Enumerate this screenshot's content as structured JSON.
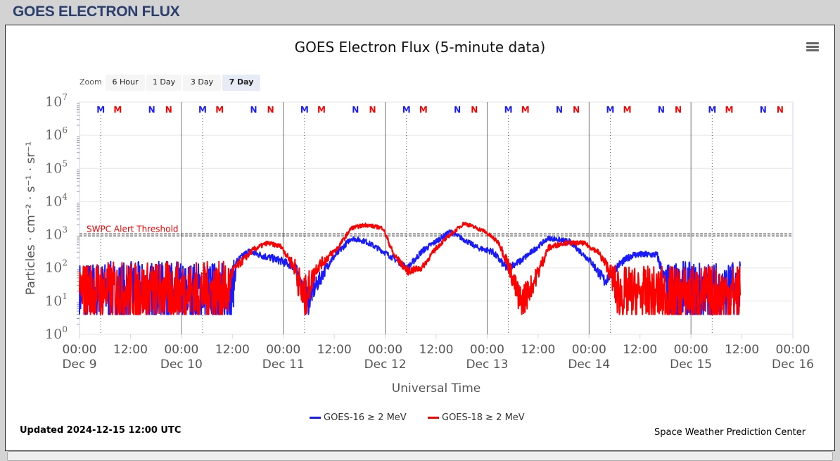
{
  "header": {
    "title": "GOES ELECTRON FLUX"
  },
  "zoom": {
    "label": "Zoom",
    "buttons": [
      "6 Hour",
      "1 Day",
      "3 Day",
      "7 Day"
    ],
    "selected": "7 Day"
  },
  "menu_icon": "hamburger-menu-icon",
  "footer": {
    "updated": "Updated 2024-12-15 12:00 UTC",
    "credit": "Space Weather Prediction Center"
  },
  "colors": {
    "goes16": "#1a1aff",
    "goes18": "#ff0000",
    "threshold": "#333333",
    "header": "#2a3f6d"
  },
  "chart_data": {
    "type": "line",
    "title": "GOES Electron Flux (5-minute data)",
    "xlabel": "Universal Time",
    "ylabel": "Particles · cm⁻² · s⁻¹ · sr⁻¹",
    "yscale": "log",
    "ylim_log10": [
      0,
      7
    ],
    "ytick_exponents": [
      "0",
      "1",
      "2",
      "3",
      "4",
      "5",
      "6",
      "7"
    ],
    "xrange_hours_from_dec9": [
      0,
      168
    ],
    "xtick_times": [
      "00:00",
      "12:00",
      "00:00",
      "12:00",
      "00:00",
      "12:00",
      "00:00",
      "12:00",
      "00:00",
      "12:00",
      "00:00",
      "12:00",
      "00:00",
      "12:00",
      "00:00"
    ],
    "xtick_dates": [
      "Dec 9",
      "",
      "Dec 10",
      "",
      "Dec 11",
      "",
      "Dec 12",
      "",
      "Dec 13",
      "",
      "Dec 14",
      "",
      "Dec 15",
      "",
      "Dec 16"
    ],
    "threshold": {
      "label": "SWPC Alert Threshold",
      "value": 1000
    },
    "markers_per_day": [
      {
        "text": "M",
        "color": "#1a1aff",
        "hour": 5
      },
      {
        "text": "M",
        "color": "#ff0000",
        "hour": 9
      },
      {
        "text": "N",
        "color": "#1a1aff",
        "hour": 17
      },
      {
        "text": "N",
        "color": "#ff0000",
        "hour": 21
      }
    ],
    "floor_log10": 0.6,
    "legend": "bottom-center",
    "series": [
      {
        "name": "GOES-16 ≥ 2 MeV",
        "color": "#1a1aff",
        "keypoints_hour_log10_noise": [
          [
            0,
            1.3,
            0.75
          ],
          [
            36,
            1.3,
            0.75
          ],
          [
            37,
            2.2,
            0.1
          ],
          [
            39.7,
            2.5,
            0.1
          ],
          [
            47.8,
            2.2,
            0.12
          ],
          [
            51,
            2.0,
            0.12
          ],
          [
            53.5,
            1.0,
            0.5
          ],
          [
            55,
            1.3,
            0.3
          ],
          [
            59,
            2.2,
            0.12
          ],
          [
            64,
            2.9,
            0.08
          ],
          [
            67.4,
            2.8,
            0.08
          ],
          [
            71.5,
            2.5,
            0.08
          ],
          [
            77.3,
            2.0,
            0.1
          ],
          [
            80.6,
            2.5,
            0.1
          ],
          [
            87.3,
            3.1,
            0.07
          ],
          [
            93.9,
            2.6,
            0.08
          ],
          [
            97.2,
            2.5,
            0.1
          ],
          [
            100.5,
            2.0,
            0.12
          ],
          [
            103.8,
            2.2,
            0.1
          ],
          [
            110.4,
            2.9,
            0.07
          ],
          [
            115.4,
            2.8,
            0.08
          ],
          [
            120.4,
            2.2,
            0.1
          ],
          [
            123.7,
            1.6,
            0.2
          ],
          [
            127,
            2.1,
            0.12
          ],
          [
            130.3,
            2.4,
            0.1
          ],
          [
            136,
            2.4,
            0.1
          ],
          [
            137.8,
            1.6,
            0.3
          ],
          [
            139,
            1.3,
            0.75
          ],
          [
            155.6,
            1.3,
            0.75
          ]
        ]
      },
      {
        "name": "GOES-18 ≥ 2 MeV",
        "color": "#ff0000",
        "keypoints_hour_log10_noise": [
          [
            0,
            1.3,
            0.75
          ],
          [
            35,
            1.3,
            0.75
          ],
          [
            36,
            1.9,
            0.15
          ],
          [
            40.9,
            2.55,
            0.08
          ],
          [
            44.2,
            2.75,
            0.07
          ],
          [
            47.5,
            2.65,
            0.07
          ],
          [
            49.2,
            2.3,
            0.1
          ],
          [
            50.8,
            2.0,
            0.3
          ],
          [
            52.8,
            1.0,
            0.6
          ],
          [
            55.8,
            2.0,
            0.2
          ],
          [
            60.8,
            2.6,
            0.08
          ],
          [
            64,
            3.2,
            0.06
          ],
          [
            67.4,
            3.3,
            0.06
          ],
          [
            71.5,
            3.2,
            0.06
          ],
          [
            74,
            2.4,
            0.1
          ],
          [
            77.3,
            1.9,
            0.12
          ],
          [
            80.6,
            2.0,
            0.1
          ],
          [
            84,
            2.6,
            0.08
          ],
          [
            87.3,
            3.0,
            0.06
          ],
          [
            90.6,
            3.35,
            0.06
          ],
          [
            95.5,
            3.1,
            0.06
          ],
          [
            98.8,
            2.75,
            0.07
          ],
          [
            101.3,
            2.0,
            0.25
          ],
          [
            103.8,
            0.9,
            0.5
          ],
          [
            107.1,
            1.6,
            0.3
          ],
          [
            110.4,
            2.6,
            0.1
          ],
          [
            113.8,
            2.75,
            0.07
          ],
          [
            118.7,
            2.75,
            0.07
          ],
          [
            122,
            2.5,
            0.08
          ],
          [
            124.5,
            2.0,
            0.2
          ],
          [
            127,
            1.2,
            0.7
          ],
          [
            155.6,
            1.2,
            0.75
          ]
        ]
      }
    ]
  }
}
